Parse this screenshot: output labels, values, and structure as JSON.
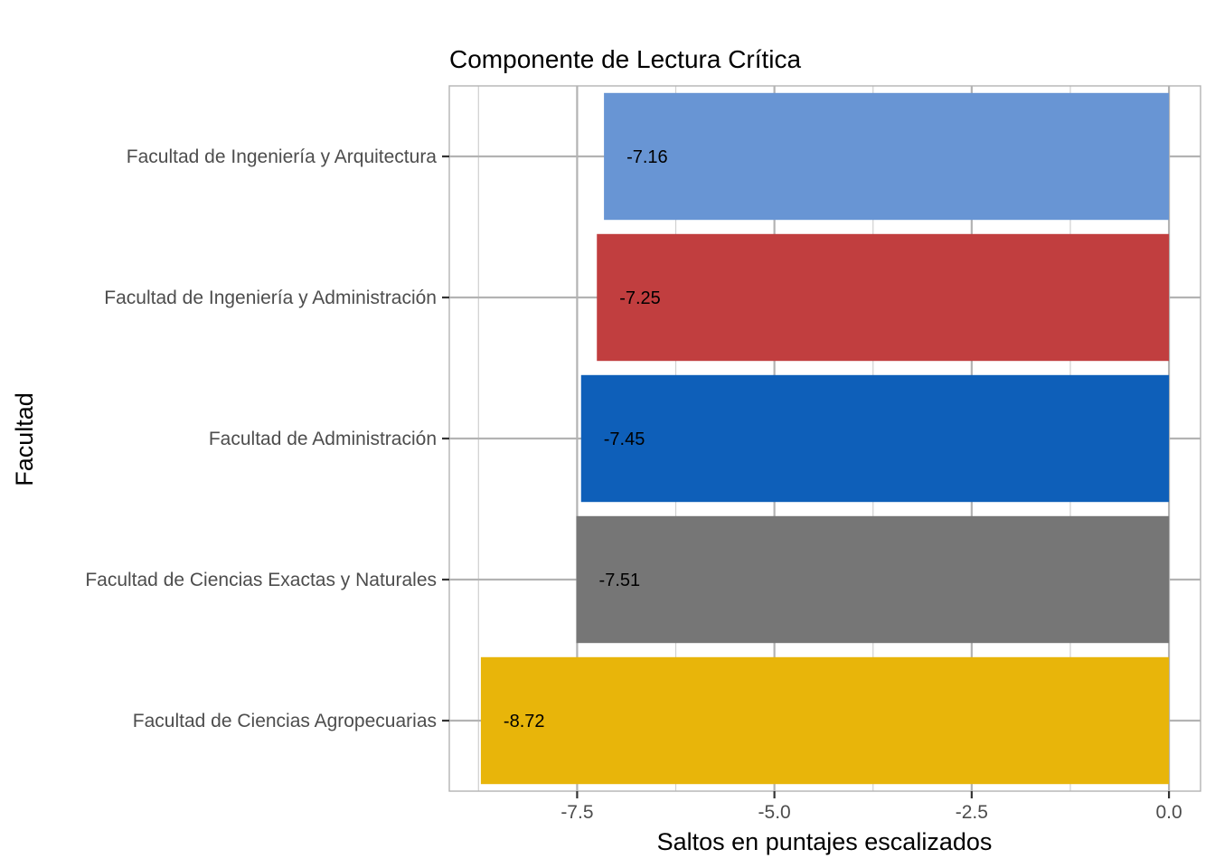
{
  "chart_data": {
    "type": "bar",
    "orientation": "horizontal",
    "title": "Componente de Lectura Crítica",
    "xlabel": "Saltos en puntajes escalizados",
    "ylabel": "Facultad",
    "categories": [
      "Facultad de Ingeniería y Arquitectura",
      "Facultad de Ingeniería y Administración",
      "Facultad de Administración",
      "Facultad de Ciencias Exactas y Naturales",
      "Facultad de Ciencias Agropecuarias"
    ],
    "values": [
      -7.16,
      -7.25,
      -7.45,
      -7.51,
      -8.72
    ],
    "value_labels": [
      "-7.16",
      "-7.25",
      "-7.45",
      "-7.51",
      "-8.72"
    ],
    "colors": [
      "#6895d4",
      "#c13e3f",
      "#0e5fb9",
      "#767676",
      "#e8b50a"
    ],
    "xlim": [
      -9.12,
      0.4
    ],
    "x_ticks": [
      -7.5,
      -5.0,
      -2.5,
      0.0
    ],
    "x_tick_labels": [
      "-7.5",
      "-5.0",
      "-2.5",
      "0.0"
    ],
    "x_minor_ticks": [
      -8.75,
      -6.25,
      -3.75,
      -1.25
    ],
    "grid": true,
    "legend": "none"
  }
}
